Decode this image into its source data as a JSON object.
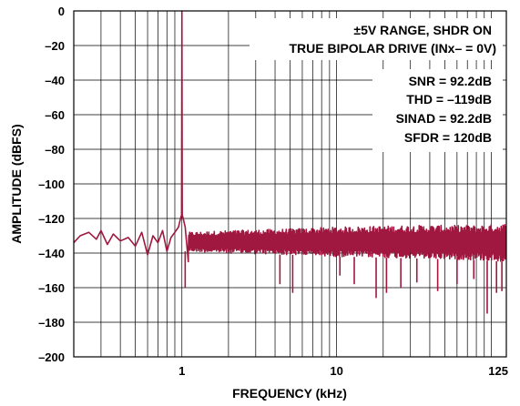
{
  "chart_data": {
    "type": "line",
    "title": "",
    "xlabel": "FREQUENCY (kHz)",
    "ylabel": "AMPLITUDE (dBFS)",
    "x_scale": "log",
    "xlim": [
      0.2,
      125
    ],
    "ylim": [
      -200,
      0
    ],
    "grid": true,
    "x_tick_labels": [
      "1",
      "10",
      "125"
    ],
    "x_tick_values": [
      1,
      10,
      125
    ],
    "y_ticks": [
      0,
      -20,
      -40,
      -60,
      -80,
      -100,
      -120,
      -140,
      -160,
      -180,
      -200
    ],
    "y_tick_labels": [
      "0",
      "–20",
      "–40",
      "–60",
      "–80",
      "–100",
      "–120",
      "–140",
      "–160",
      "–180",
      "–200"
    ],
    "annotations": [
      "±5V RANGE, SHDR ON",
      "TRUE BIPOLAR DRIVE (INx– = 0V)",
      "SNR = 92.2dB",
      "THD = –119dB",
      "SINAD = 92.2dB",
      "SFDR = 120dB"
    ],
    "series": [
      {
        "color": "#a0173f",
        "fundamental": {
          "x": 1,
          "y": 0
        },
        "noise_floor_trace": {
          "x": [
            0.2,
            0.22,
            0.25,
            0.28,
            0.3,
            0.33,
            0.36,
            0.4,
            0.45,
            0.5,
            0.55,
            0.6,
            0.65,
            0.7,
            0.75,
            0.8,
            0.85,
            0.9,
            0.95,
            0.98,
            1.02,
            1.05,
            1.1,
            1.15,
            1.2,
            1.3,
            1.4,
            1.5,
            1.7,
            2.0,
            2.5,
            3,
            4,
            5,
            6,
            8,
            10,
            15,
            20,
            30,
            40,
            60,
            80,
            100,
            125
          ],
          "y": [
            -134,
            -130,
            -128,
            -132,
            -127,
            -135,
            -129,
            -133,
            -131,
            -136,
            -128,
            -141,
            -130,
            -134,
            -127,
            -139,
            -131,
            -128,
            -125,
            -120,
            -120,
            -125,
            -145,
            -133,
            -130,
            -138,
            -129,
            -136,
            -131,
            -140,
            -133,
            -137,
            -131,
            -139,
            -132,
            -136,
            -131,
            -140,
            -133,
            -137,
            -132,
            -139,
            -133,
            -137,
            -134
          ]
        },
        "noise_band_min": [
          -139,
          -140,
          -141,
          -142,
          -143,
          -144,
          -145
        ],
        "noise_band_max": [
          -128,
          -127,
          -126,
          -125,
          -124,
          -124,
          -123
        ],
        "noise_band_x": [
          1.1,
          2,
          5,
          10,
          30,
          80,
          125
        ],
        "spurs_down": [
          {
            "x": 1.05,
            "y": -160
          },
          {
            "x": 4.3,
            "y": -158
          },
          {
            "x": 5.2,
            "y": -163
          },
          {
            "x": 10.5,
            "y": -153
          },
          {
            "x": 13,
            "y": -158
          },
          {
            "x": 18,
            "y": -166
          },
          {
            "x": 21,
            "y": -163
          },
          {
            "x": 26,
            "y": -160
          },
          {
            "x": 33,
            "y": -157
          },
          {
            "x": 45,
            "y": -162
          },
          {
            "x": 60,
            "y": -158
          },
          {
            "x": 77,
            "y": -155
          },
          {
            "x": 94,
            "y": -175
          },
          {
            "x": 108,
            "y": -163
          },
          {
            "x": 117,
            "y": -162
          }
        ]
      }
    ]
  }
}
